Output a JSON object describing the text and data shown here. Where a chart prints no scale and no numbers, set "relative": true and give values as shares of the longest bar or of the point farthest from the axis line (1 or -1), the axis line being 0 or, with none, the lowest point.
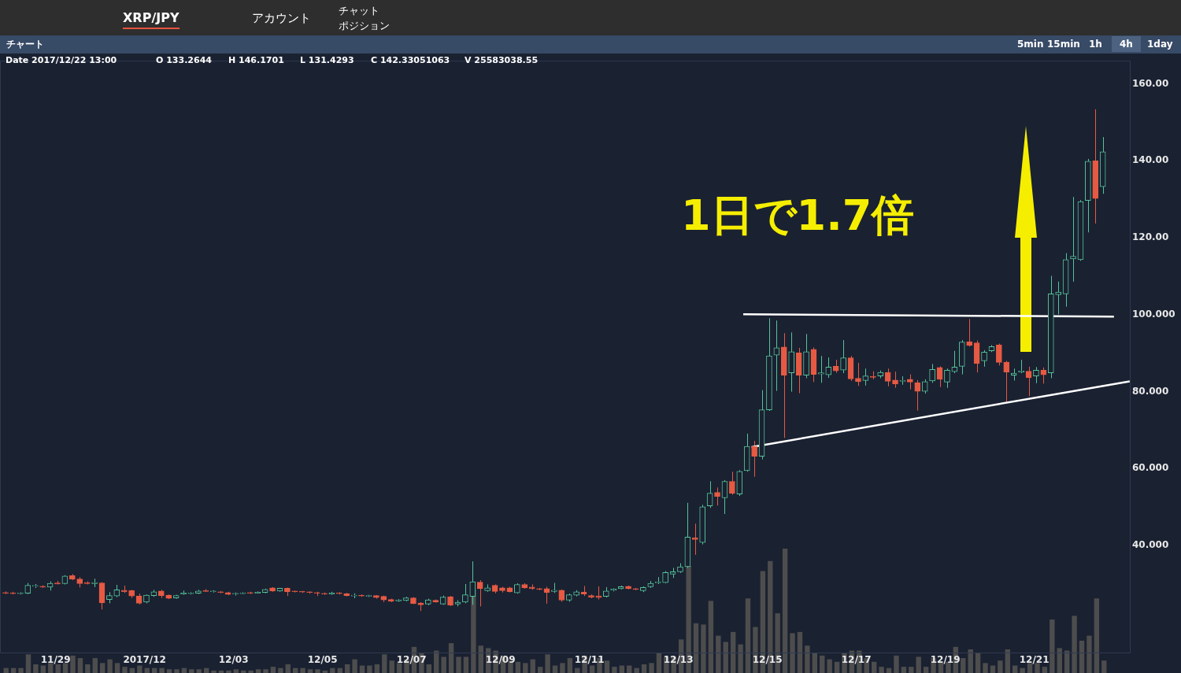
{
  "chart_data": [
    {
      "type": "candlestick",
      "title": "XRP/JPY",
      "annotations": [
        "アカウント",
        "チャット",
        "ポジション",
        "チャート",
        "5min",
        "15min",
        "1h",
        "4h",
        "1day",
        "Date 2017/12/22 13:00",
        "O 133.2644",
        "H 146.1701",
        "L 131.4293",
        "C 142.33051063",
        "V 25583038.55",
        "1日で1.7倍"
      ],
      "x": [
        "2017-11-27T21:00",
        "2017-11-28T01:00",
        "2017-11-28T05:00",
        "2017-11-28T09:00",
        "2017-11-28T13:00",
        "2017-11-28T17:00",
        "2017-11-28T21:00",
        "2017-11-29T01:00",
        "2017-11-29T05:00",
        "2017-11-29T09:00",
        "2017-11-29T13:00",
        "2017-11-29T17:00",
        "2017-11-29T21:00",
        "2017-11-30T01:00",
        "2017-11-30T05:00",
        "2017-11-30T09:00",
        "2017-11-30T13:00",
        "2017-11-30T17:00",
        "2017-11-30T21:00",
        "2017-12-01T01:00",
        "2017-12-01T05:00",
        "2017-12-01T09:00",
        "2017-12-01T13:00",
        "2017-12-01T17:00",
        "2017-12-01T21:00",
        "2017-12-02T01:00",
        "2017-12-02T05:00",
        "2017-12-02T09:00",
        "2017-12-02T13:00",
        "2017-12-02T17:00",
        "2017-12-02T21:00",
        "2017-12-03T01:00",
        "2017-12-03T05:00",
        "2017-12-03T09:00",
        "2017-12-03T13:00",
        "2017-12-03T17:00",
        "2017-12-03T21:00",
        "2017-12-04T01:00",
        "2017-12-04T05:00",
        "2017-12-04T09:00",
        "2017-12-04T13:00",
        "2017-12-04T17:00",
        "2017-12-04T21:00",
        "2017-12-05T01:00",
        "2017-12-05T05:00",
        "2017-12-05T09:00",
        "2017-12-05T13:00",
        "2017-12-05T17:00",
        "2017-12-05T21:00",
        "2017-12-06T01:00",
        "2017-12-06T05:00",
        "2017-12-06T09:00",
        "2017-12-06T13:00",
        "2017-12-06T17:00",
        "2017-12-06T21:00",
        "2017-12-07T01:00",
        "2017-12-07T05:00",
        "2017-12-07T09:00",
        "2017-12-07T13:00",
        "2017-12-07T17:00",
        "2017-12-07T21:00",
        "2017-12-08T01:00",
        "2017-12-08T05:00",
        "2017-12-08T09:00",
        "2017-12-08T13:00",
        "2017-12-08T17:00",
        "2017-12-08T21:00",
        "2017-12-09T01:00",
        "2017-12-09T05:00",
        "2017-12-09T09:00",
        "2017-12-09T13:00",
        "2017-12-09T17:00",
        "2017-12-09T21:00",
        "2017-12-10T01:00",
        "2017-12-10T05:00",
        "2017-12-10T09:00",
        "2017-12-10T13:00",
        "2017-12-10T17:00",
        "2017-12-10T21:00",
        "2017-12-11T01:00",
        "2017-12-11T05:00",
        "2017-12-11T09:00",
        "2017-12-11T13:00",
        "2017-12-11T17:00",
        "2017-12-11T21:00",
        "2017-12-12T01:00",
        "2017-12-12T05:00",
        "2017-12-12T09:00",
        "2017-12-12T13:00",
        "2017-12-12T17:00",
        "2017-12-12T21:00",
        "2017-12-13T01:00",
        "2017-12-13T05:00",
        "2017-12-13T09:00",
        "2017-12-13T13:00",
        "2017-12-13T17:00",
        "2017-12-13T21:00",
        "2017-12-14T01:00",
        "2017-12-14T05:00",
        "2017-12-14T09:00",
        "2017-12-14T13:00",
        "2017-12-14T17:00",
        "2017-12-14T21:00",
        "2017-12-15T01:00",
        "2017-12-15T05:00",
        "2017-12-15T09:00",
        "2017-12-15T13:00",
        "2017-12-15T17:00",
        "2017-12-15T21:00",
        "2017-12-16T01:00",
        "2017-12-16T05:00",
        "2017-12-16T09:00",
        "2017-12-16T13:00",
        "2017-12-16T17:00",
        "2017-12-16T21:00",
        "2017-12-17T01:00",
        "2017-12-17T05:00",
        "2017-12-17T09:00",
        "2017-12-17T13:00",
        "2017-12-17T17:00",
        "2017-12-17T21:00",
        "2017-12-18T01:00",
        "2017-12-18T05:00",
        "2017-12-18T09:00",
        "2017-12-18T13:00",
        "2017-12-18T17:00",
        "2017-12-18T21:00",
        "2017-12-19T01:00",
        "2017-12-19T05:00",
        "2017-12-19T09:00",
        "2017-12-19T13:00",
        "2017-12-19T17:00",
        "2017-12-19T21:00",
        "2017-12-20T01:00",
        "2017-12-20T05:00",
        "2017-12-20T09:00",
        "2017-12-20T13:00",
        "2017-12-20T17:00",
        "2017-12-20T21:00",
        "2017-12-21T01:00",
        "2017-12-21T05:00",
        "2017-12-21T09:00",
        "2017-12-21T13:00",
        "2017-12-21T17:00",
        "2017-12-21T21:00",
        "2017-12-22T01:00",
        "2017-12-22T05:00",
        "2017-12-22T09:00",
        "2017-12-22T13:00"
      ],
      "ohlc": [
        [
          27.8,
          28.1,
          27.4,
          27.6
        ],
        [
          27.7,
          28.0,
          27.3,
          27.5
        ],
        [
          27.5,
          27.9,
          27.3,
          27.7
        ],
        [
          27.6,
          30.3,
          27.4,
          29.7
        ],
        [
          29.4,
          30.0,
          29.0,
          29.6
        ],
        [
          29.4,
          29.7,
          29.0,
          29.2
        ],
        [
          29.2,
          30.7,
          28.3,
          30.2
        ],
        [
          30.3,
          30.8,
          29.9,
          30.0
        ],
        [
          30.1,
          32.3,
          29.9,
          32.1
        ],
        [
          32.2,
          32.6,
          31.0,
          31.3
        ],
        [
          31.3,
          31.8,
          29.1,
          30.1
        ],
        [
          30.4,
          30.7,
          29.9,
          30.1
        ],
        [
          30.1,
          31.4,
          29.2,
          30.4
        ],
        [
          30.3,
          30.5,
          23.4,
          25.1
        ],
        [
          26.0,
          27.9,
          25.0,
          27.0
        ],
        [
          26.9,
          29.8,
          26.6,
          28.5
        ],
        [
          28.4,
          29.6,
          27.7,
          28.0
        ],
        [
          28.3,
          28.5,
          26.4,
          26.9
        ],
        [
          26.9,
          27.5,
          24.7,
          25.0
        ],
        [
          25.3,
          27.3,
          25.0,
          27.1
        ],
        [
          27.0,
          28.5,
          26.7,
          28.0
        ],
        [
          28.2,
          28.5,
          26.4,
          27.0
        ],
        [
          27.1,
          27.3,
          26.1,
          26.3
        ],
        [
          26.4,
          27.2,
          26.2,
          27.0
        ],
        [
          27.4,
          28.3,
          27.2,
          27.7
        ],
        [
          27.5,
          27.9,
          27.3,
          27.6
        ],
        [
          27.6,
          28.5,
          27.4,
          28.2
        ],
        [
          28.3,
          28.7,
          28.0,
          28.1
        ],
        [
          28.0,
          28.4,
          27.8,
          28.1
        ],
        [
          28.0,
          28.2,
          27.6,
          27.8
        ],
        [
          27.8,
          28.0,
          27.1,
          27.3
        ],
        [
          27.4,
          27.8,
          27.0,
          27.5
        ],
        [
          27.5,
          27.9,
          27.4,
          27.7
        ],
        [
          27.8,
          28.0,
          27.4,
          27.6
        ],
        [
          27.6,
          28.1,
          27.5,
          27.9
        ],
        [
          27.8,
          28.8,
          27.6,
          28.6
        ],
        [
          29.0,
          29.2,
          28.0,
          28.2
        ],
        [
          28.2,
          29.0,
          28.0,
          28.9
        ],
        [
          28.9,
          29.1,
          26.9,
          28.0
        ],
        [
          28.1,
          28.3,
          27.8,
          28.0
        ],
        [
          28.0,
          28.2,
          27.7,
          27.9
        ],
        [
          27.9,
          28.1,
          27.5,
          27.8
        ],
        [
          27.8,
          28.0,
          26.9,
          27.6
        ],
        [
          27.6,
          27.8,
          27.2,
          27.4
        ],
        [
          27.4,
          28.0,
          27.2,
          27.7
        ],
        [
          27.7,
          27.9,
          27.3,
          27.5
        ],
        [
          27.5,
          27.7,
          26.8,
          27.0
        ],
        [
          26.9,
          27.6,
          26.3,
          27.1
        ],
        [
          27.1,
          27.3,
          26.7,
          26.9
        ],
        [
          26.8,
          27.2,
          26.6,
          27.0
        ],
        [
          27.0,
          27.1,
          26.2,
          26.5
        ],
        [
          26.8,
          27.0,
          25.3,
          25.9
        ],
        [
          26.0,
          26.2,
          25.3,
          25.5
        ],
        [
          25.6,
          26.1,
          25.4,
          25.9
        ],
        [
          25.7,
          26.7,
          25.5,
          26.4
        ],
        [
          26.4,
          26.6,
          24.8,
          24.9
        ],
        [
          25.1,
          25.3,
          23.0,
          24.6
        ],
        [
          24.8,
          26.2,
          24.5,
          25.9
        ],
        [
          25.8,
          26.0,
          25.2,
          25.3
        ],
        [
          24.8,
          27.0,
          24.6,
          26.6
        ],
        [
          26.7,
          26.9,
          24.3,
          24.5
        ],
        [
          24.8,
          25.8,
          24.2,
          25.3
        ],
        [
          25.3,
          30.0,
          25.0,
          27.2
        ],
        [
          26.8,
          35.9,
          24.6,
          30.6
        ],
        [
          30.5,
          31.0,
          24.2,
          28.8
        ],
        [
          28.3,
          29.9,
          28.0,
          29.0
        ],
        [
          29.7,
          29.9,
          27.6,
          28.1
        ],
        [
          29.0,
          29.3,
          27.8,
          28.3
        ],
        [
          29.0,
          29.3,
          27.8,
          28.0
        ],
        [
          27.7,
          30.2,
          27.5,
          29.9
        ],
        [
          29.9,
          30.2,
          28.8,
          29.0
        ],
        [
          29.2,
          29.9,
          28.5,
          28.8
        ],
        [
          28.8,
          29.0,
          28.4,
          28.6
        ],
        [
          28.8,
          29.3,
          24.9,
          27.8
        ],
        [
          28.1,
          30.3,
          27.7,
          28.4
        ],
        [
          28.4,
          28.6,
          25.4,
          25.8
        ],
        [
          25.8,
          27.5,
          25.4,
          27.2
        ],
        [
          27.1,
          28.4,
          26.8,
          28.0
        ],
        [
          27.9,
          29.5,
          26.9,
          27.4
        ],
        [
          27.0,
          27.3,
          26.3,
          26.6
        ],
        [
          26.9,
          29.4,
          26.0,
          26.5
        ],
        [
          26.8,
          29.2,
          26.5,
          28.2
        ],
        [
          28.4,
          28.9,
          28.1,
          28.7
        ],
        [
          28.8,
          29.6,
          28.6,
          29.3
        ],
        [
          29.4,
          29.6,
          28.6,
          28.8
        ],
        [
          28.8,
          29.0,
          28.4,
          28.6
        ],
        [
          28.3,
          29.4,
          27.9,
          29.1
        ],
        [
          29.3,
          30.8,
          29.0,
          30.2
        ],
        [
          30.3,
          31.8,
          30.0,
          30.6
        ],
        [
          30.4,
          33.4,
          30.2,
          33.0
        ],
        [
          32.6,
          34.2,
          31.6,
          33.2
        ],
        [
          33.2,
          35.4,
          32.9,
          34.5
        ],
        [
          34.5,
          51.1,
          34.2,
          42.2
        ],
        [
          42.0,
          45.7,
          37.6,
          41.6
        ],
        [
          40.8,
          50.6,
          40.3,
          50.1
        ],
        [
          50.3,
          56.7,
          49.8,
          53.6
        ],
        [
          53.8,
          55.1,
          50.4,
          52.8
        ],
        [
          52.4,
          57.0,
          48.2,
          56.7
        ],
        [
          56.7,
          59.2,
          53.2,
          53.6
        ],
        [
          53.4,
          59.6,
          52.9,
          59.3
        ],
        [
          59.5,
          69.1,
          59.2,
          65.8
        ],
        [
          65.8,
          67.2,
          57.9,
          63.2
        ],
        [
          63.2,
          80.4,
          62.4,
          75.3
        ],
        [
          75.3,
          99.1,
          75.0,
          89.3
        ],
        [
          89.5,
          98.5,
          80.2,
          91.4
        ],
        [
          91.6,
          95.2,
          68.0,
          84.3
        ],
        [
          84.9,
          95.4,
          80.0,
          90.4
        ],
        [
          90.1,
          91.4,
          79.6,
          84.3
        ],
        [
          84.3,
          95.0,
          83.5,
          90.4
        ],
        [
          91.0,
          91.5,
          82.5,
          84.5
        ],
        [
          84.6,
          89.3,
          82.3,
          84.9
        ],
        [
          84.4,
          88.9,
          83.6,
          86.4
        ],
        [
          86.6,
          88.3,
          84.9,
          85.4
        ],
        [
          85.6,
          93.4,
          84.8,
          88.8
        ],
        [
          88.8,
          89.3,
          82.8,
          83.3
        ],
        [
          83.5,
          87.5,
          81.5,
          82.6
        ],
        [
          82.9,
          86.0,
          81.6,
          84.1
        ],
        [
          84.0,
          85.3,
          83.2,
          83.7
        ],
        [
          84.1,
          85.5,
          83.5,
          85.0
        ],
        [
          85.0,
          86.0,
          81.4,
          82.7
        ],
        [
          83.0,
          85.2,
          81.0,
          82.0
        ],
        [
          82.7,
          84.0,
          81.8,
          82.9
        ],
        [
          83.2,
          84.5,
          80.6,
          82.5
        ],
        [
          82.3,
          83.0,
          75.1,
          80.1
        ],
        [
          80.1,
          83.2,
          79.5,
          82.6
        ],
        [
          82.8,
          87.2,
          82.3,
          85.8
        ],
        [
          86.3,
          86.6,
          81.2,
          83.2
        ],
        [
          82.5,
          86.0,
          81.0,
          85.6
        ],
        [
          85.2,
          90.6,
          84.8,
          86.4
        ],
        [
          86.6,
          93.4,
          84.5,
          92.9
        ],
        [
          93.0,
          98.9,
          91.7,
          92.0
        ],
        [
          92.7,
          93.3,
          85.0,
          87.3
        ],
        [
          88.0,
          90.8,
          86.5,
          90.3
        ],
        [
          90.6,
          92.1,
          90.3,
          91.7
        ],
        [
          92.2,
          92.5,
          86.8,
          87.6
        ],
        [
          87.7,
          88.0,
          77.4,
          85.1
        ],
        [
          84.3,
          86.0,
          82.9,
          84.8
        ],
        [
          85.1,
          88.3,
          84.8,
          85.4
        ],
        [
          85.3,
          86.5,
          78.8,
          83.6
        ],
        [
          84.1,
          86.4,
          82.2,
          85.6
        ],
        [
          85.6,
          86.3,
          82.1,
          84.4
        ],
        [
          84.9,
          110.1,
          83.5,
          105.4
        ],
        [
          105.2,
          108.6,
          100.1,
          105.9
        ],
        [
          105.4,
          116.0,
          102.1,
          114.3
        ],
        [
          114.5,
          130.6,
          108.6,
          115.2
        ],
        [
          114.3,
          129.8,
          114.0,
          129.4
        ],
        [
          129.7,
          140.5,
          121.4,
          139.9
        ],
        [
          140.0,
          153.4,
          123.7,
          130.2
        ],
        [
          133.2644,
          146.1701,
          131.4293,
          142.33051063
        ]
      ],
      "colors": [
        "#e65a43",
        "#e65a43",
        "#56c49a",
        "#56c49a",
        "#56c49a",
        "#e65a43",
        "#56c49a",
        "#e65a43",
        "#56c49a",
        "#e65a43",
        "#e65a43",
        "#e65a43",
        "#56c49a",
        "#e65a43",
        "#56c49a",
        "#56c49a",
        "#e65a43",
        "#e65a43",
        "#e65a43",
        "#56c49a",
        "#56c49a",
        "#e65a43",
        "#e65a43",
        "#56c49a",
        "#56c49a",
        "#56c49a",
        "#56c49a",
        "#e65a43",
        "#56c49a",
        "#e65a43",
        "#e65a43",
        "#56c49a",
        "#56c49a",
        "#e65a43",
        "#56c49a",
        "#56c49a",
        "#e65a43",
        "#56c49a",
        "#e65a43",
        "#e65a43",
        "#e65a43",
        "#e65a43",
        "#e65a43",
        "#e65a43",
        "#56c49a",
        "#e65a43",
        "#e65a43",
        "#56c49a",
        "#e65a43",
        "#56c49a",
        "#e65a43",
        "#e65a43",
        "#e65a43",
        "#56c49a",
        "#56c49a",
        "#e65a43",
        "#e65a43",
        "#56c49a",
        "#e65a43",
        "#56c49a",
        "#e65a43",
        "#56c49a",
        "#56c49a",
        "#56c49a",
        "#e65a43",
        "#56c49a",
        "#e65a43",
        "#e65a43",
        "#e65a43",
        "#56c49a",
        "#e65a43",
        "#e65a43",
        "#e65a43",
        "#e65a43",
        "#56c49a",
        "#e65a43",
        "#56c49a",
        "#56c49a",
        "#e65a43",
        "#e65a43",
        "#e65a43",
        "#56c49a",
        "#56c49a",
        "#56c49a",
        "#e65a43",
        "#e65a43",
        "#56c49a",
        "#56c49a",
        "#56c49a",
        "#56c49a",
        "#56c49a",
        "#56c49a",
        "#56c49a",
        "#e65a43",
        "#56c49a",
        "#56c49a",
        "#e65a43",
        "#56c49a",
        "#e65a43",
        "#56c49a",
        "#56c49a",
        "#e65a43",
        "#56c49a",
        "#56c49a",
        "#56c49a",
        "#e65a43",
        "#56c49a",
        "#e65a43",
        "#56c49a",
        "#e65a43",
        "#56c49a",
        "#56c49a",
        "#e65a43",
        "#56c49a",
        "#e65a43",
        "#e65a43",
        "#56c49a",
        "#e65a43",
        "#56c49a",
        "#e65a43",
        "#e65a43",
        "#56c49a",
        "#e65a43",
        "#e65a43",
        "#56c49a",
        "#56c49a",
        "#e65a43",
        "#56c49a",
        "#56c49a",
        "#56c49a",
        "#e65a43",
        "#e65a43",
        "#56c49a",
        "#56c49a",
        "#e65a43",
        "#e65a43",
        "#56c49a",
        "#56c49a",
        "#e65a43",
        "#56c49a",
        "#e65a43",
        "#56c49a",
        "#56c49a",
        "#56c49a",
        "#56c49a",
        "#56c49a",
        "#56c49a",
        "#e65a43",
        "#56c49a"
      ],
      "series": [
        {
          "type": "line",
          "color": "#ffffff",
          "x": [
            "2017-12-14T11:00",
            "2017-12-22T19:00"
          ],
          "values": [
            100.1,
            99.5
          ]
        },
        {
          "type": "line",
          "color": "#ffffff",
          "x": [
            "2017-12-14T15:30",
            "2017-12-23T03:30"
          ],
          "values": [
            65.6,
            82.7
          ]
        }
      ],
      "marker": "none",
      "xlim": [
        "2017-11-27T18:00",
        "2017-12-23T04:00"
      ],
      "xticks": [
        {
          "value": "2017-11-29",
          "label": "11/29"
        },
        {
          "value": "2017-12-01",
          "label": "2017/12"
        },
        {
          "value": "2017-12-03",
          "label": "12/03"
        },
        {
          "value": "2017-12-05",
          "label": "12/05"
        },
        {
          "value": "2017-12-07",
          "label": "12/07"
        },
        {
          "value": "2017-12-09",
          "label": "12/09"
        },
        {
          "value": "2017-12-11",
          "label": "12/11"
        },
        {
          "value": "2017-12-13",
          "label": "12/13"
        },
        {
          "value": "2017-12-15",
          "label": "12/15"
        },
        {
          "value": "2017-12-17",
          "label": "12/17"
        },
        {
          "value": "2017-12-19",
          "label": "12/19"
        },
        {
          "value": "2017-12-21",
          "label": "12/21"
        }
      ],
      "ylim": [
        12,
        166
      ],
      "yticks": [
        {
          "value": 40,
          "label": "40.000"
        },
        {
          "value": 60,
          "label": "60.000"
        },
        {
          "value": 80,
          "label": "80.000"
        },
        {
          "value": 100,
          "label": "100.000"
        },
        {
          "value": 120,
          "label": "120.00"
        },
        {
          "value": 140,
          "label": "140.00"
        },
        {
          "value": 160,
          "label": "160.00"
        }
      ]
    },
    {
      "type": "bar",
      "relative": true,
      "tick_labels": false,
      "color": "#4d4d4d",
      "categories": [
        null,
        null,
        null,
        null,
        null,
        null,
        null,
        null,
        null,
        null,
        null,
        null,
        null,
        null,
        null,
        null,
        null,
        null,
        null,
        null,
        null,
        null,
        null,
        null,
        null,
        null,
        null,
        null,
        null,
        null,
        null,
        null,
        null,
        null,
        null,
        null,
        null,
        null,
        null,
        null,
        null,
        null,
        null,
        null,
        null,
        null,
        null,
        null,
        null,
        null,
        null,
        null,
        null,
        null,
        null,
        null,
        null,
        null,
        null,
        null,
        null,
        null,
        null,
        null,
        null,
        null,
        null,
        null,
        null,
        null,
        null,
        null,
        null,
        null,
        null,
        null,
        null,
        null,
        null,
        null,
        null,
        null,
        null,
        null,
        null,
        null,
        null,
        null,
        null,
        null,
        null,
        null,
        null,
        null,
        null,
        null,
        null,
        null,
        null,
        null,
        null,
        null,
        null,
        null,
        null,
        null,
        null,
        null,
        null,
        null,
        null,
        null,
        null,
        null,
        null,
        null,
        null,
        null,
        null,
        null,
        null,
        null,
        null,
        null,
        null,
        null,
        null,
        null,
        null,
        null,
        null,
        null,
        null,
        null,
        null,
        null,
        null,
        null,
        null,
        null,
        null,
        null,
        null,
        null,
        null,
        null,
        null,
        null,
        null
      ],
      "values": [
        0.04,
        0.04,
        0.04,
        0.15,
        0.07,
        0.06,
        0.08,
        0.07,
        0.08,
        0.14,
        0.12,
        0.07,
        0.12,
        0.08,
        0.11,
        0.08,
        0.05,
        0.04,
        0.06,
        0.04,
        0.04,
        0.04,
        0.03,
        0.03,
        0.04,
        0.03,
        0.03,
        0.04,
        0.02,
        0.02,
        0.02,
        0.03,
        0.02,
        0.02,
        0.03,
        0.03,
        0.05,
        0.04,
        0.07,
        0.04,
        0.04,
        0.03,
        0.03,
        0.02,
        0.04,
        0.04,
        0.07,
        0.11,
        0.06,
        0.06,
        0.07,
        0.15,
        0.1,
        0.08,
        0.11,
        0.21,
        0.16,
        0.07,
        0.18,
        0.13,
        0.24,
        0.13,
        0.13,
        0.67,
        0.22,
        0.2,
        0.18,
        0.14,
        0.1,
        0.09,
        0.08,
        0.11,
        0.05,
        0.15,
        0.06,
        0.08,
        0.12,
        0.04,
        0.14,
        0.06,
        0.12,
        0.1,
        0.05,
        0.06,
        0.06,
        0.04,
        0.07,
        0.08,
        0.16,
        0.13,
        0.13,
        0.27,
        0.86,
        0.4,
        0.39,
        0.58,
        0.3,
        0.25,
        0.33,
        0.23,
        0.6,
        0.37,
        0.82,
        0.9,
        0.48,
        1,
        0.32,
        0.33,
        0.22,
        0.16,
        0.14,
        0.11,
        0.09,
        0.16,
        0.18,
        0.18,
        0.12,
        0.09,
        0.05,
        0.04,
        0.14,
        0.05,
        0.05,
        0.13,
        0.05,
        0.12,
        0.09,
        0.09,
        0.21,
        0.12,
        0.19,
        0.16,
        0.08,
        0.06,
        0.1,
        0.19,
        0.06,
        0.04,
        0.08,
        0.08,
        0.05,
        0.43,
        0.2,
        0.18,
        0.46,
        0.26,
        0.3,
        0.6,
        0.1
      ]
    }
  ]
}
